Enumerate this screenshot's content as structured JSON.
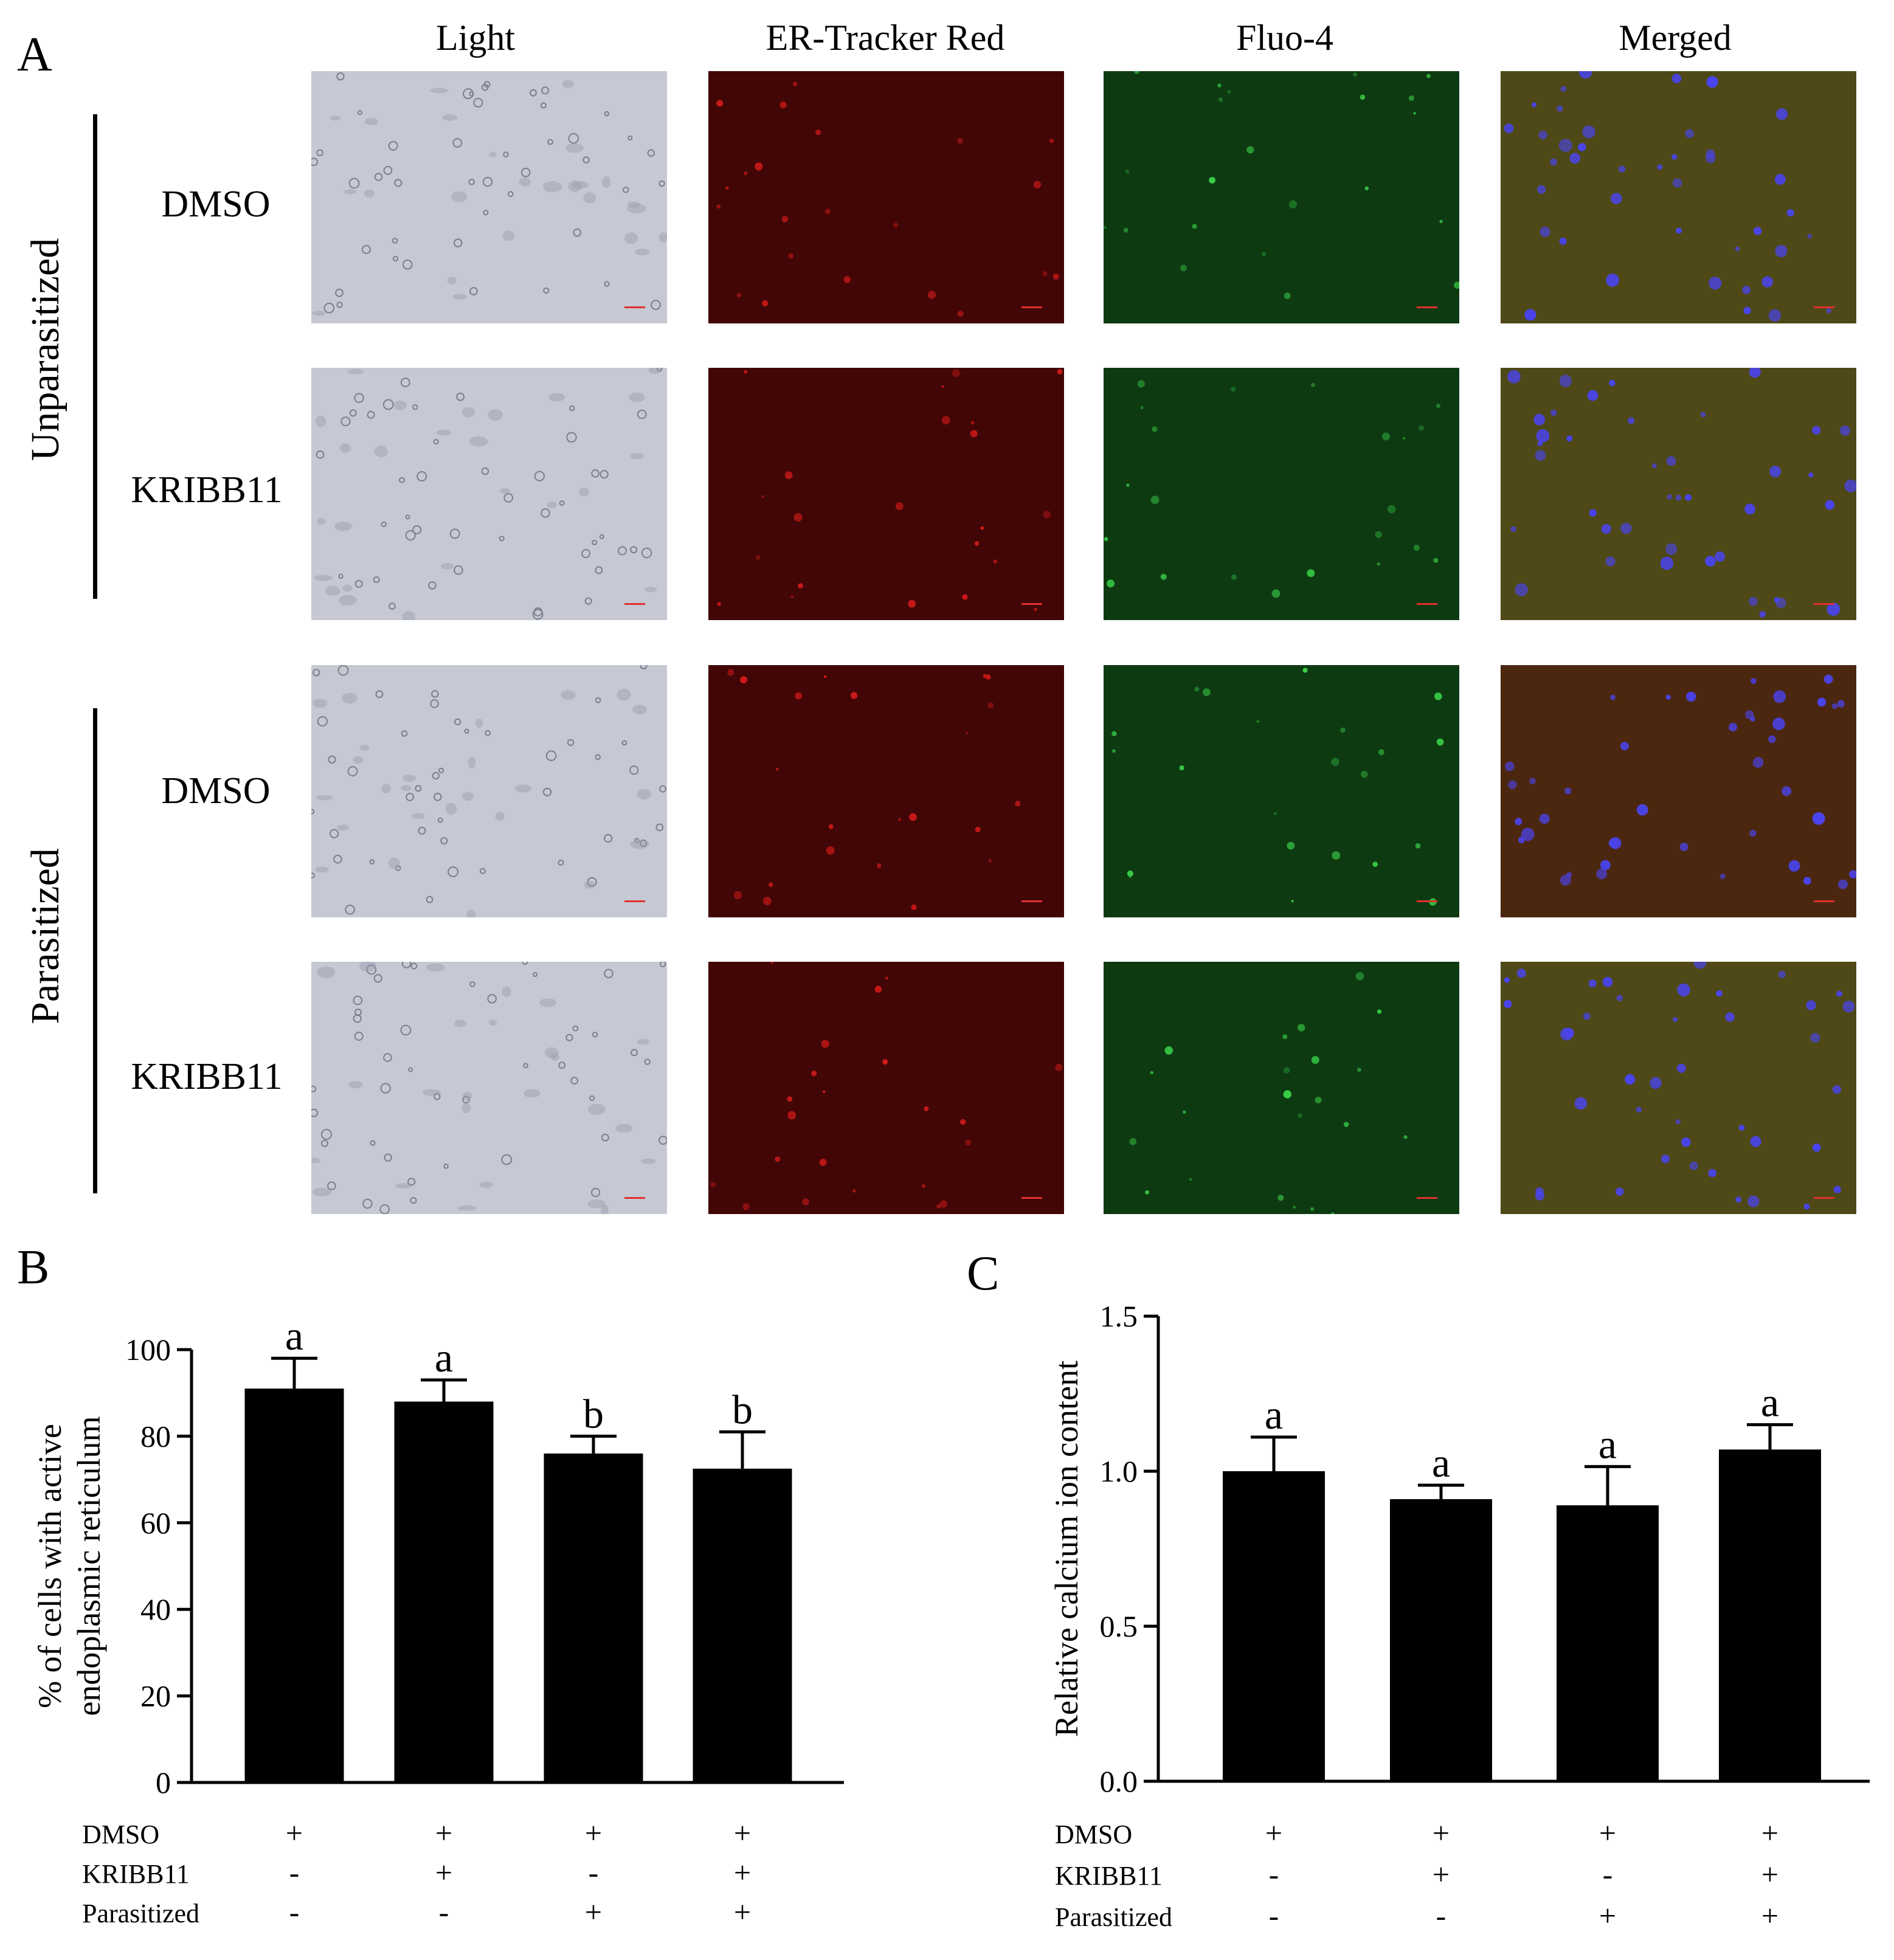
{
  "panel_labels": {
    "a": "A",
    "b": "B",
    "c": "C"
  },
  "microscopy": {
    "columns": [
      "Light",
      "ER-Tracker Red",
      "Fluo-4",
      "Merged"
    ],
    "groups": [
      "Unparasitized",
      "Parasitized"
    ],
    "rows": [
      "DMSO",
      "KRIBB11",
      "DMSO",
      "KRIBB11"
    ],
    "colors": {
      "light": "#c6c9d3",
      "red": "#420606",
      "green": "#0e3a12",
      "merged": "#4e4916",
      "merged_par": "#4c2710"
    }
  },
  "chart_data": [
    {
      "type": "bar",
      "ylabel": [
        "% of cells with active",
        "endoplasmic reticulum"
      ],
      "ylim": [
        0,
        100
      ],
      "yticks": [
        "0",
        "20",
        "40",
        "60",
        "80",
        "100"
      ],
      "values": [
        91,
        88,
        76,
        72.5
      ],
      "errors": [
        7,
        5,
        4,
        8.5
      ],
      "sig_letters": [
        "a",
        "a",
        "b",
        "b"
      ],
      "treatment_rows": [
        {
          "label": "DMSO",
          "signs": [
            "+",
            "+",
            "+",
            "+"
          ]
        },
        {
          "label": "KRIBB11",
          "signs": [
            "-",
            "+",
            "-",
            "+"
          ]
        },
        {
          "label": "Parasitized",
          "signs": [
            "-",
            "-",
            "+",
            "+"
          ]
        }
      ]
    },
    {
      "type": "bar",
      "ylabel": [
        "Relative calcium ion content"
      ],
      "ylim": [
        0,
        1.5
      ],
      "yticks": [
        "0.0",
        "0.5",
        "1.0",
        "1.5"
      ],
      "values": [
        1.0,
        0.91,
        0.89,
        1.07
      ],
      "errors": [
        0.11,
        0.045,
        0.125,
        0.08
      ],
      "sig_letters": [
        "a",
        "a",
        "a",
        "a"
      ],
      "treatment_rows": [
        {
          "label": "DMSO",
          "signs": [
            "+",
            "+",
            "+",
            "+"
          ]
        },
        {
          "label": "KRIBB11",
          "signs": [
            "-",
            "+",
            "-",
            "+"
          ]
        },
        {
          "label": "Parasitized",
          "signs": [
            "-",
            "-",
            "+",
            "+"
          ]
        }
      ]
    }
  ]
}
